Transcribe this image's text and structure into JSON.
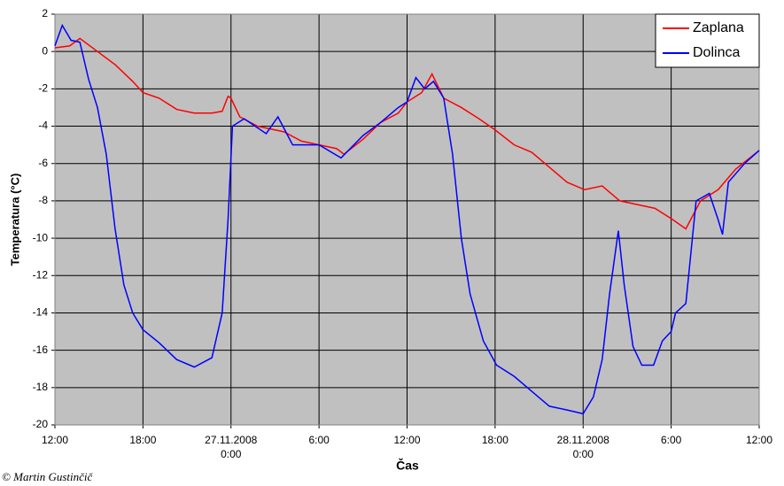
{
  "chart_data": {
    "type": "line",
    "xlabel": "Čas",
    "ylabel": "Temperatura (°C)",
    "credit": "© Martin Gustinčič",
    "xlim": [
      0,
      48
    ],
    "xticks": [
      {
        "value": 0,
        "label": "12:00"
      },
      {
        "value": 6,
        "label": "18:00"
      },
      {
        "value": 12,
        "label": "27.11.2008\n0:00"
      },
      {
        "value": 18,
        "label": "6:00"
      },
      {
        "value": 24,
        "label": "12:00"
      },
      {
        "value": 30,
        "label": "18:00"
      },
      {
        "value": 36,
        "label": "28.11.2008\n0:00"
      },
      {
        "value": 42,
        "label": "6:00"
      },
      {
        "value": 48,
        "label": "12:00"
      }
    ],
    "ylim": [
      -20,
      2
    ],
    "yticks": [
      -20,
      -18,
      -16,
      -14,
      -12,
      -10,
      -8,
      -6,
      -4,
      -2,
      0,
      2
    ],
    "grid": true,
    "legend": "upper right",
    "series": [
      {
        "name": "Zaplana",
        "color": "#ff0000",
        "x": [
          0,
          1,
          1.7,
          2.9,
          4.1,
          5.3,
          6,
          7.1,
          8.3,
          9.5,
          10.7,
          11.4,
          11.8,
          12,
          12.6,
          13.8,
          15.6,
          16.8,
          18,
          19.2,
          19.7,
          21,
          22.2,
          23.4,
          24,
          25,
          25.7,
          26.5,
          27.7,
          28.9,
          30,
          31.3,
          32.5,
          33.7,
          34.9,
          36.1,
          37.3,
          38.5,
          39.7,
          40.9,
          42.1,
          43,
          44,
          45.2,
          46.4,
          48
        ],
        "values": [
          0.2,
          0.3,
          0.7,
          0,
          -0.7,
          -1.6,
          -2.2,
          -2.5,
          -3.1,
          -3.3,
          -3.3,
          -3.2,
          -2.4,
          -2.5,
          -3.5,
          -4.0,
          -4.3,
          -4.8,
          -5.0,
          -5.2,
          -5.5,
          -4.7,
          -3.8,
          -3.3,
          -2.7,
          -2.2,
          -1.2,
          -2.5,
          -3.0,
          -3.6,
          -4.2,
          -5.0,
          -5.4,
          -6.2,
          -7.0,
          -7.4,
          -7.2,
          -8.0,
          -8.2,
          -8.4,
          -9.0,
          -9.5,
          -8.0,
          -7.4,
          -6.3,
          -5.3
        ]
      },
      {
        "name": "Dolinca",
        "color": "#0000ff",
        "x": [
          0,
          0.5,
          1.1,
          1.7,
          2.3,
          2.9,
          3.5,
          4.1,
          4.7,
          5.3,
          6,
          7.1,
          8.3,
          9.5,
          10.7,
          11.4,
          11.8,
          12.1,
          12.9,
          14.4,
          15.2,
          16.2,
          18,
          19.5,
          21,
          22.2,
          23.4,
          24,
          24.6,
          25.2,
          25.8,
          26.5,
          27.1,
          27.7,
          28.3,
          29.2,
          30.1,
          31.3,
          32.5,
          33.7,
          34.9,
          36,
          36.7,
          37.3,
          37.8,
          38.4,
          38.8,
          39.4,
          40,
          40.8,
          41.4,
          42,
          42.3,
          43,
          43.7,
          44.6,
          45.2,
          45.5,
          45.9,
          47,
          48
        ],
        "values": [
          0.3,
          1.4,
          0.6,
          0.5,
          -1.5,
          -3.0,
          -5.5,
          -9.5,
          -12.5,
          -14.0,
          -14.9,
          -15.6,
          -16.5,
          -16.9,
          -16.4,
          -14.0,
          -9.0,
          -4.0,
          -3.6,
          -4.4,
          -3.5,
          -5.0,
          -5.0,
          -5.7,
          -4.5,
          -3.8,
          -3.0,
          -2.7,
          -1.4,
          -2.0,
          -1.6,
          -2.5,
          -5.5,
          -10.0,
          -13.0,
          -15.5,
          -16.8,
          -17.4,
          -18.2,
          -19.0,
          -19.2,
          -19.4,
          -18.5,
          -16.5,
          -13.0,
          -9.6,
          -12.5,
          -15.8,
          -16.8,
          -16.8,
          -15.5,
          -15.0,
          -14.0,
          -13.5,
          -8.0,
          -7.6,
          -9.0,
          -9.8,
          -7.0,
          -6.0,
          -5.3
        ]
      }
    ]
  }
}
